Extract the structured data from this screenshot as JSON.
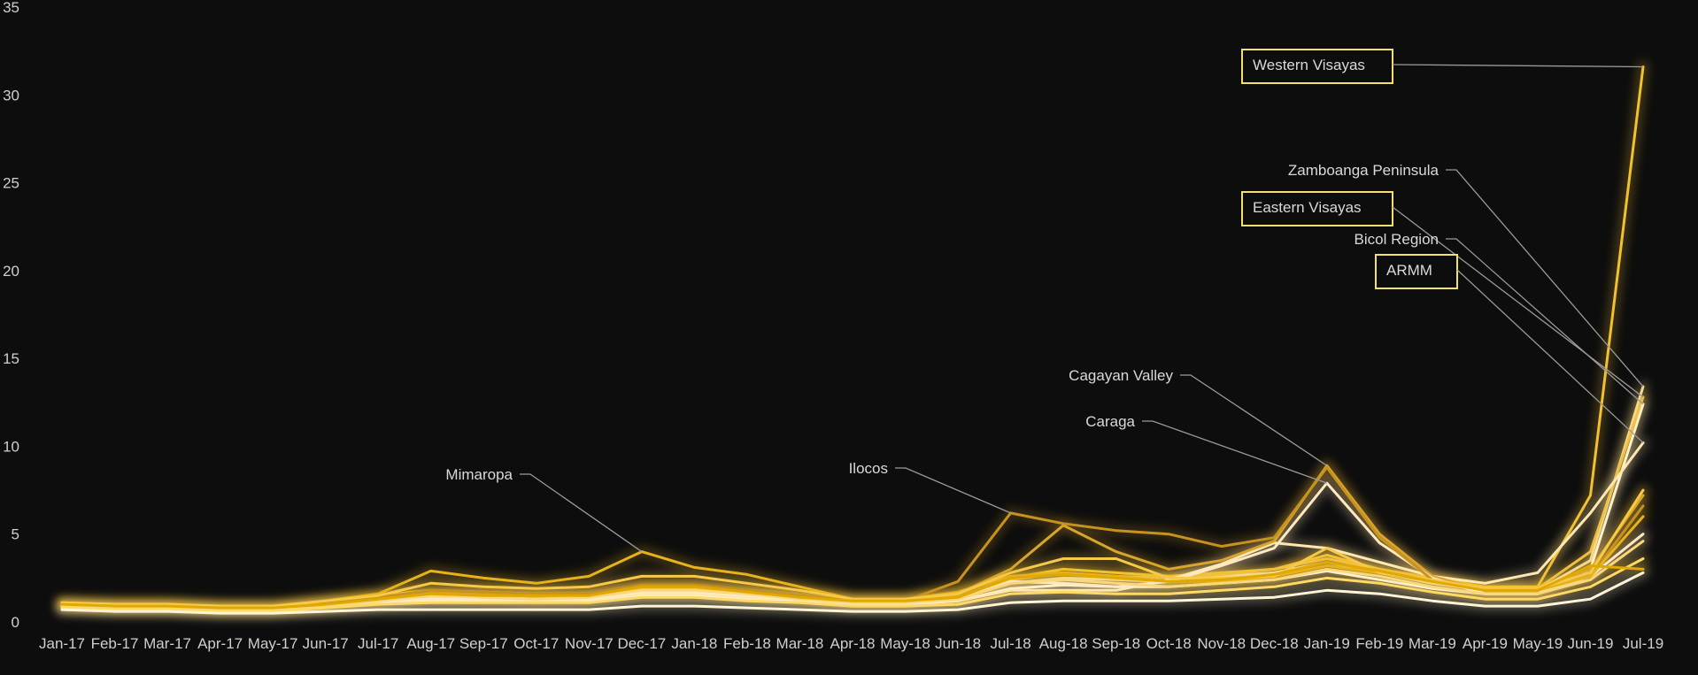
{
  "chart_data": {
    "type": "line",
    "title": "",
    "xlabel": "",
    "ylabel": "",
    "ylim": [
      0,
      35
    ],
    "y_ticks": [
      0,
      5,
      10,
      15,
      20,
      25,
      30,
      35
    ],
    "grid": false,
    "legend": "none",
    "categories": [
      "Jan-17",
      "Feb-17",
      "Mar-17",
      "Apr-17",
      "May-17",
      "Jun-17",
      "Jul-17",
      "Aug-17",
      "Sep-17",
      "Oct-17",
      "Nov-17",
      "Dec-17",
      "Jan-18",
      "Feb-18",
      "Mar-18",
      "Apr-18",
      "May-18",
      "Jun-18",
      "Jul-18",
      "Aug-18",
      "Sep-18",
      "Oct-18",
      "Nov-18",
      "Dec-18",
      "Jan-19",
      "Feb-19",
      "Mar-19",
      "Apr-19",
      "May-19",
      "Jun-19",
      "Jul-19"
    ],
    "series": [
      {
        "name": "Western Visayas",
        "color": "#f2c12e",
        "highlight": true,
        "values": [
          1.0,
          1.0,
          1.0,
          0.8,
          0.8,
          1.2,
          1.5,
          1.8,
          1.7,
          1.6,
          1.6,
          2.0,
          2.0,
          1.8,
          1.5,
          1.2,
          1.2,
          1.4,
          2.5,
          3.0,
          2.8,
          2.6,
          2.8,
          3.0,
          3.8,
          3.0,
          2.5,
          2.0,
          2.0,
          7.2,
          31.6
        ]
      },
      {
        "name": "Zamboanga Peninsula",
        "color": "#f5d98a",
        "highlight": false,
        "values": [
          1.0,
          0.9,
          0.9,
          0.8,
          0.8,
          1.0,
          1.2,
          1.4,
          1.4,
          1.3,
          1.4,
          1.8,
          1.8,
          1.6,
          1.4,
          1.1,
          1.1,
          1.3,
          2.2,
          2.5,
          2.4,
          2.3,
          2.6,
          2.8,
          3.4,
          2.8,
          2.2,
          1.8,
          1.8,
          3.5,
          13.4
        ]
      },
      {
        "name": "Eastern Visayas",
        "color": "#f0c040",
        "highlight": true,
        "values": [
          1.1,
          1.0,
          1.0,
          0.9,
          0.9,
          1.1,
          1.3,
          1.6,
          1.6,
          1.5,
          1.5,
          1.9,
          1.9,
          1.7,
          1.5,
          1.2,
          1.2,
          1.4,
          2.4,
          2.8,
          2.6,
          2.5,
          2.7,
          3.0,
          3.6,
          3.0,
          2.4,
          1.9,
          1.9,
          4.0,
          12.8
        ]
      },
      {
        "name": "Bicol Region",
        "color": "#fff0c8",
        "highlight": false,
        "values": [
          0.9,
          0.8,
          0.8,
          0.7,
          0.7,
          0.9,
          1.1,
          1.2,
          1.2,
          1.2,
          1.2,
          1.5,
          1.5,
          1.3,
          1.2,
          1.0,
          1.0,
          1.2,
          1.9,
          2.1,
          2.0,
          2.0,
          2.2,
          2.4,
          2.9,
          2.4,
          1.9,
          1.6,
          1.6,
          3.0,
          12.4
        ]
      },
      {
        "name": "ARMM",
        "color": "#ffe7b0",
        "highlight": true,
        "values": [
          1.0,
          0.9,
          0.9,
          0.8,
          0.8,
          1.0,
          1.2,
          1.3,
          1.3,
          1.3,
          1.3,
          1.6,
          1.6,
          1.4,
          1.3,
          1.0,
          1.0,
          1.2,
          1.8,
          1.8,
          1.8,
          2.4,
          3.3,
          4.5,
          4.2,
          3.4,
          2.6,
          2.2,
          2.8,
          6.2,
          10.2
        ]
      },
      {
        "name": "Cagayan Valley",
        "color": "#d9a52a",
        "highlight": false,
        "values": [
          1.0,
          0.9,
          0.9,
          0.8,
          0.8,
          1.0,
          1.3,
          1.6,
          1.6,
          1.5,
          1.6,
          2.0,
          2.0,
          1.8,
          1.5,
          1.2,
          1.2,
          1.6,
          3.0,
          5.5,
          4.0,
          3.0,
          3.5,
          4.6,
          8.9,
          5.0,
          2.6,
          1.8,
          1.8,
          3.0,
          7.2
        ]
      },
      {
        "name": "Caraga",
        "color": "#ffe9c2",
        "highlight": false,
        "values": [
          0.9,
          0.8,
          0.8,
          0.7,
          0.7,
          0.9,
          1.1,
          1.3,
          1.3,
          1.2,
          1.3,
          1.7,
          1.7,
          1.5,
          1.3,
          1.0,
          1.0,
          1.3,
          2.3,
          2.2,
          2.0,
          2.3,
          3.2,
          4.2,
          7.9,
          4.5,
          2.5,
          1.6,
          1.6,
          2.6,
          5.0
        ]
      },
      {
        "name": "Ilocos",
        "color": "#c7931f",
        "highlight": false,
        "values": [
          1.0,
          0.9,
          0.9,
          0.8,
          0.8,
          1.1,
          1.4,
          1.8,
          1.7,
          1.6,
          1.6,
          2.1,
          2.1,
          1.8,
          1.5,
          1.2,
          1.2,
          2.3,
          6.2,
          5.6,
          5.2,
          5.0,
          4.3,
          4.8,
          8.8,
          4.8,
          2.4,
          1.8,
          1.8,
          2.6,
          6.6
        ]
      },
      {
        "name": "Mimaropa",
        "color": "#e8b21a",
        "highlight": false,
        "values": [
          1.0,
          0.9,
          0.9,
          0.8,
          0.8,
          1.2,
          1.6,
          2.9,
          2.5,
          2.2,
          2.6,
          4.0,
          3.1,
          2.7,
          2.0,
          1.3,
          1.3,
          1.7,
          2.6,
          2.8,
          2.6,
          2.3,
          2.3,
          2.6,
          3.2,
          2.8,
          2.3,
          1.8,
          1.8,
          2.6,
          6.0
        ]
      },
      {
        "name": "",
        "color": "#f7c948",
        "highlight": false,
        "values": [
          1.1,
          1.0,
          1.0,
          0.9,
          0.9,
          1.2,
          1.5,
          2.2,
          2.0,
          1.9,
          2.0,
          2.6,
          2.6,
          2.2,
          1.8,
          1.3,
          1.3,
          1.6,
          2.8,
          3.6,
          3.6,
          2.5,
          2.5,
          2.6,
          4.2,
          2.8,
          2.4,
          1.9,
          1.9,
          2.8,
          7.5
        ]
      },
      {
        "name": "",
        "color": "#fad77a",
        "highlight": false,
        "values": [
          0.9,
          0.8,
          0.8,
          0.7,
          0.7,
          0.9,
          1.2,
          1.5,
          1.4,
          1.3,
          1.4,
          1.8,
          1.8,
          1.6,
          1.3,
          1.1,
          1.1,
          1.3,
          2.2,
          2.4,
          2.2,
          2.0,
          2.2,
          2.4,
          3.0,
          2.6,
          2.0,
          1.6,
          1.6,
          2.4,
          4.6
        ]
      },
      {
        "name": "",
        "color": "#ffd966",
        "highlight": false,
        "values": [
          0.8,
          0.7,
          0.7,
          0.6,
          0.6,
          0.8,
          1.0,
          1.1,
          1.1,
          1.1,
          1.1,
          1.4,
          1.4,
          1.2,
          1.1,
          0.9,
          0.9,
          1.0,
          1.6,
          1.7,
          1.6,
          1.6,
          1.8,
          2.0,
          2.5,
          2.2,
          1.7,
          1.3,
          1.3,
          2.0,
          3.6
        ]
      },
      {
        "name": "",
        "color": "#fff4d6",
        "highlight": false,
        "values": [
          0.7,
          0.6,
          0.6,
          0.5,
          0.5,
          0.6,
          0.7,
          0.7,
          0.7,
          0.7,
          0.7,
          0.9,
          0.9,
          0.8,
          0.7,
          0.6,
          0.6,
          0.7,
          1.1,
          1.2,
          1.2,
          1.2,
          1.3,
          1.4,
          1.8,
          1.6,
          1.2,
          0.9,
          0.9,
          1.3,
          2.8
        ]
      },
      {
        "name": "",
        "color": "#e0a800",
        "highlight": false,
        "values": [
          1.0,
          0.9,
          0.9,
          0.8,
          0.8,
          1.0,
          1.3,
          1.6,
          1.5,
          1.5,
          1.5,
          2.0,
          2.0,
          1.7,
          1.4,
          1.2,
          1.2,
          1.4,
          2.5,
          2.7,
          2.5,
          2.3,
          2.4,
          2.7,
          3.4,
          2.9,
          2.3,
          1.8,
          1.8,
          3.2,
          3.0
        ]
      }
    ],
    "annotations": [
      {
        "label": "Western Visayas",
        "series": "Western Visayas",
        "boxed": true
      },
      {
        "label": "Zamboanga Peninsula",
        "series": "Zamboanga Peninsula",
        "boxed": false
      },
      {
        "label": "Eastern Visayas",
        "series": "Eastern Visayas",
        "boxed": true
      },
      {
        "label": "Bicol Region",
        "series": "Bicol Region",
        "boxed": false
      },
      {
        "label": "ARMM",
        "series": "ARMM",
        "boxed": true
      },
      {
        "label": "Cagayan Valley",
        "series": "Cagayan Valley",
        "boxed": false
      },
      {
        "label": "Caraga",
        "series": "Caraga",
        "boxed": false
      },
      {
        "label": "Ilocos",
        "series": "Ilocos",
        "boxed": false
      },
      {
        "label": "Mimaropa",
        "series": "Mimaropa",
        "boxed": false
      }
    ]
  }
}
